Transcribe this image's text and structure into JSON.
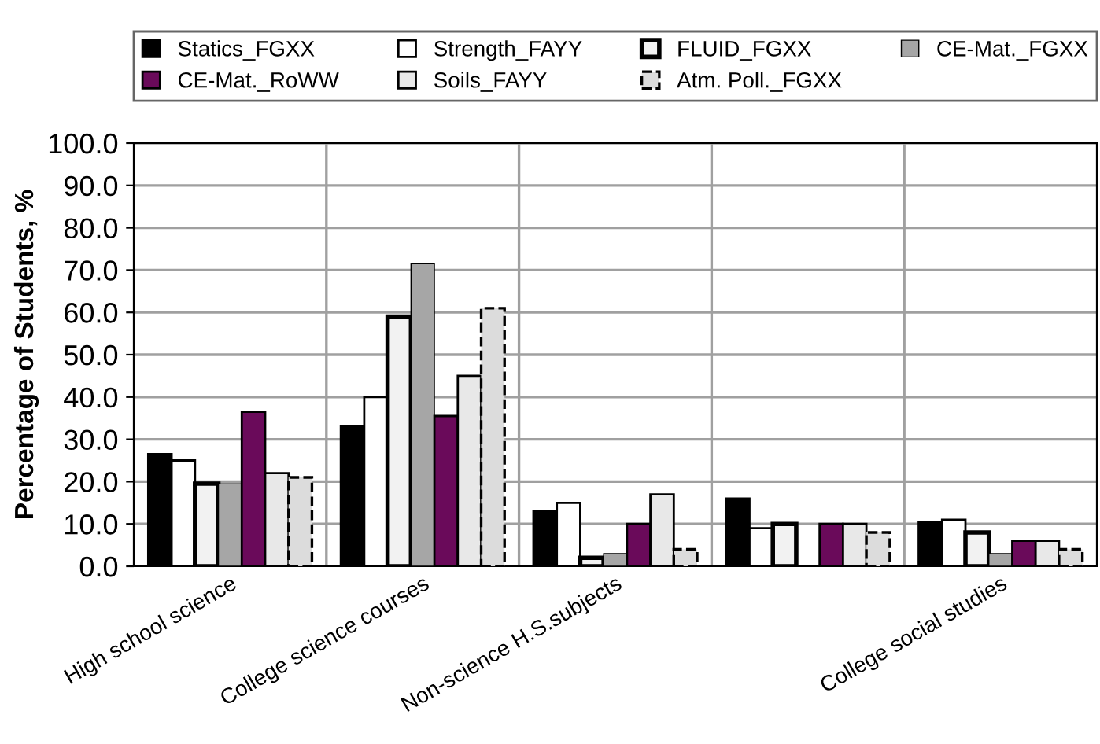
{
  "chart_data": {
    "type": "bar",
    "categories": [
      "High school science",
      "College science courses",
      "Non-science H.S.subjects",
      null,
      "College social studies"
    ],
    "ylabel": "Percentage of Students, %",
    "ylim": [
      0,
      100
    ],
    "yticks": [
      {
        "value": 0,
        "label": "0.0"
      },
      {
        "value": 10,
        "label": "10.0"
      },
      {
        "value": 20,
        "label": "20.0"
      },
      {
        "value": 30,
        "label": "30.0"
      },
      {
        "value": 40,
        "label": "40.0"
      },
      {
        "value": 50,
        "label": "50.0"
      },
      {
        "value": 60,
        "label": "60.0"
      },
      {
        "value": 70,
        "label": "70.0"
      },
      {
        "value": 80,
        "label": "80.0"
      },
      {
        "value": 90,
        "label": "90.0"
      },
      {
        "value": 100,
        "label": "100.0"
      }
    ],
    "grid": true,
    "legend": "top",
    "series": [
      {
        "name": "Statics_FGXX",
        "color": "#000000",
        "values": [
          26.5,
          33,
          13,
          16,
          10.5
        ]
      },
      {
        "name": "Strength_FAYY",
        "color": "#ffffff",
        "values": [
          25,
          40,
          15,
          9,
          11
        ]
      },
      {
        "name": "FLUID_FGXX",
        "color": "#f2f2f2",
        "values": [
          19.5,
          59,
          2,
          10,
          8
        ]
      },
      {
        "name": "CE-Mat._FGXX",
        "color": "#a6a6a6",
        "values": [
          19.5,
          71.5,
          3,
          null,
          3
        ]
      },
      {
        "name": "CE-Mat._RoWW",
        "color": "#6a0a5a",
        "values": [
          36.5,
          35.5,
          10,
          10,
          6
        ]
      },
      {
        "name": "Soils_FAYY",
        "color": "#e8e8e8",
        "values": [
          22,
          45,
          17,
          10,
          6
        ]
      },
      {
        "name": "Atm. Poll._FGXX",
        "color": "#dcdcdc",
        "values": [
          21,
          61,
          4,
          8,
          4
        ]
      }
    ]
  }
}
